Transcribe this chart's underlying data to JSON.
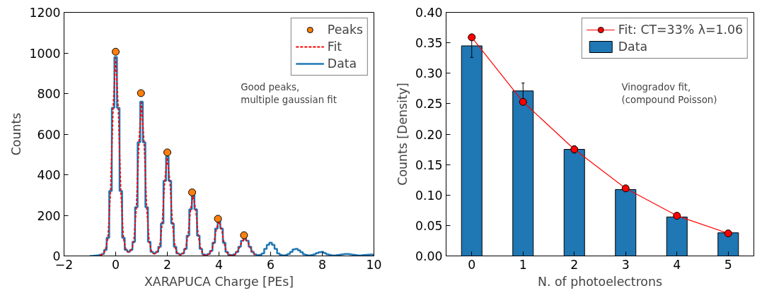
{
  "chart_data": [
    {
      "type": "step",
      "xlabel": "XARAPUCA Charge [PEs]",
      "ylabel": "Counts",
      "xlim": [
        -2,
        10
      ],
      "xticks": [
        -2,
        0,
        2,
        4,
        6,
        8,
        10
      ],
      "ylim": [
        0,
        1200
      ],
      "yticks": [
        0,
        200,
        400,
        600,
        800,
        1000,
        1200
      ],
      "grid": false,
      "legend": "top right",
      "annotations": [
        "Good peaks,\nmultiple gaussian fit"
      ],
      "series": [
        {
          "name": "Peaks",
          "type": "scatter",
          "marker": "circle",
          "color": "#ff7f0e",
          "x": [
            0,
            0.98,
            2.0,
            2.96,
            3.96,
            4.97
          ],
          "values": [
            1006,
            802,
            510,
            313,
            183,
            102
          ]
        },
        {
          "name": "Data",
          "color": "#1f77b4",
          "x": [
            -1.0,
            -0.9,
            -0.8,
            -0.7,
            -0.6,
            -0.5,
            -0.4,
            -0.3,
            -0.2,
            -0.1,
            0.0,
            0.1,
            0.2,
            0.3,
            0.4,
            0.5,
            0.6,
            0.7,
            0.8,
            0.9,
            1.0,
            1.1,
            1.2,
            1.3,
            1.4,
            1.5,
            1.6,
            1.7,
            1.8,
            1.9,
            2.0,
            2.1,
            2.2,
            2.3,
            2.4,
            2.5,
            2.6,
            2.7,
            2.8,
            2.9,
            3.0,
            3.1,
            3.2,
            3.3,
            3.4,
            3.5,
            3.6,
            3.7,
            3.8,
            3.9,
            4.0,
            4.1,
            4.2,
            4.3,
            4.4,
            4.5,
            4.6,
            4.7,
            4.8,
            4.9,
            5.0,
            5.1,
            5.2,
            5.3,
            5.4,
            5.5,
            5.6,
            5.7,
            5.8,
            5.9,
            6.0,
            6.1,
            6.2,
            6.3,
            6.4,
            6.5,
            6.6,
            6.7,
            6.8,
            6.9,
            7.0,
            7.1,
            7.2,
            7.3,
            7.4,
            7.5,
            7.6,
            7.7,
            7.8,
            7.9,
            8.0,
            8.1,
            8.2,
            8.3,
            8.4,
            8.5,
            8.6,
            8.7,
            8.8,
            8.9,
            9.0,
            9.1,
            9.2,
            9.3,
            9.4,
            9.5,
            9.6,
            9.7,
            9.8,
            9.9,
            10.0
          ],
          "values": [
            0,
            0,
            2,
            3,
            5,
            10,
            30,
            90,
            320,
            730,
            980,
            730,
            320,
            90,
            30,
            20,
            30,
            70,
            240,
            560,
            760,
            560,
            240,
            70,
            20,
            12,
            20,
            45,
            160,
            370,
            490,
            370,
            160,
            45,
            12,
            8,
            12,
            35,
            100,
            230,
            300,
            230,
            100,
            35,
            8,
            5,
            10,
            25,
            65,
            135,
            175,
            135,
            65,
            20,
            6,
            4,
            8,
            20,
            45,
            75,
            90,
            75,
            45,
            20,
            8,
            4,
            5,
            12,
            35,
            55,
            65,
            55,
            35,
            12,
            5,
            3,
            4,
            10,
            20,
            32,
            35,
            28,
            18,
            8,
            4,
            3,
            4,
            8,
            14,
            18,
            20,
            14,
            8,
            5,
            3,
            3,
            4,
            6,
            8,
            10,
            10,
            8,
            6,
            4,
            3,
            3,
            4,
            5,
            6,
            7,
            6
          ]
        },
        {
          "name": "Fit",
          "type": "line",
          "line_style": "dashed",
          "color": "#ff0000",
          "x": [
            -0.6,
            -0.5,
            -0.4,
            -0.3,
            -0.2,
            -0.1,
            0.0,
            0.1,
            0.2,
            0.3,
            0.4,
            0.5,
            0.6,
            0.7,
            0.8,
            0.9,
            1.0,
            1.1,
            1.2,
            1.3,
            1.4,
            1.5,
            1.6,
            1.7,
            1.8,
            1.9,
            2.0,
            2.1,
            2.2,
            2.3,
            2.4,
            2.5,
            2.6,
            2.7,
            2.8,
            2.9,
            3.0,
            3.1,
            3.2,
            3.3,
            3.4,
            3.5,
            3.6,
            3.7,
            3.8,
            3.9,
            4.0,
            4.1,
            4.2,
            4.3,
            4.4,
            4.5,
            4.6,
            4.7,
            4.8,
            4.9,
            5.0,
            5.1,
            5.2,
            5.3,
            5.4
          ],
          "values": [
            3,
            8,
            28,
            88,
            318,
            728,
            975,
            728,
            318,
            88,
            28,
            18,
            28,
            68,
            238,
            558,
            755,
            558,
            238,
            68,
            18,
            10,
            18,
            43,
            158,
            368,
            485,
            368,
            158,
            43,
            10,
            6,
            10,
            33,
            98,
            228,
            295,
            228,
            98,
            33,
            6,
            3,
            8,
            23,
            63,
            133,
            170,
            133,
            63,
            18,
            4,
            2,
            6,
            18,
            43,
            73,
            85,
            73,
            43,
            18,
            6
          ]
        }
      ]
    },
    {
      "type": "bar",
      "xlabel": "N. of photoelectrons",
      "ylabel": "Counts [Density]",
      "xlim": [
        -0.5,
        5.5
      ],
      "xticks": [
        0,
        1,
        2,
        3,
        4,
        5
      ],
      "ylim": [
        0,
        0.4
      ],
      "yticks": [
        {
          "value": 0,
          "label": "0.00"
        },
        {
          "value": 0.05,
          "label": "0.05"
        },
        {
          "value": 0.1,
          "label": "0.10"
        },
        {
          "value": 0.15,
          "label": "0.15"
        },
        {
          "value": 0.2,
          "label": "0.20"
        },
        {
          "value": 0.25,
          "label": "0.25"
        },
        {
          "value": 0.3,
          "label": "0.30"
        },
        {
          "value": 0.35,
          "label": "0.35"
        },
        {
          "value": 0.4,
          "label": "0.40"
        }
      ],
      "grid": false,
      "legend": "top right",
      "annotations": [
        "Vinogradov fit,\n(compound Poisson)"
      ],
      "series": [
        {
          "name": "Fit: CT=33% λ=1.06",
          "type": "line",
          "marker": "circle",
          "color": "#ff0000",
          "x": [
            0,
            1,
            2,
            3,
            4,
            5
          ],
          "values": [
            0.359,
            0.253,
            0.175,
            0.111,
            0.066,
            0.037
          ]
        },
        {
          "name": "Data",
          "color": "#1f77b4",
          "x": [
            0,
            1,
            2,
            3,
            4,
            5
          ],
          "values": [
            0.345,
            0.271,
            0.175,
            0.109,
            0.064,
            0.038
          ],
          "errors": [
            0.019,
            0.013,
            0.006,
            0.003,
            0.002,
            null
          ]
        }
      ]
    }
  ]
}
